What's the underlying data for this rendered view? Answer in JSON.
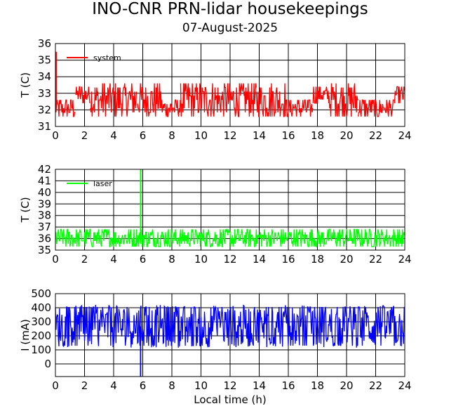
{
  "title": "INO-CNR PRN-lidar housekeepings",
  "subtitle": "07-August-2025",
  "chart_data": [
    {
      "type": "line",
      "name": "system-temperature",
      "ylabel": "T (C)",
      "xlabel": "",
      "xlim": [
        0,
        24
      ],
      "ylim": [
        31,
        36
      ],
      "x_ticks": [
        0,
        2,
        4,
        6,
        8,
        10,
        12,
        14,
        16,
        18,
        20,
        22,
        24
      ],
      "y_ticks": [
        31,
        32,
        33,
        34,
        35,
        36
      ],
      "grid": true,
      "legend_position": "top-left",
      "series": [
        {
          "name": "system",
          "color": "#ff0000",
          "spike": {
            "x": 0.05,
            "value": 35.5
          },
          "segments": [
            {
              "x": [
                0.0,
                1.4
              ],
              "low": 31.6,
              "high": 32.7
            },
            {
              "x": [
                1.4,
                2.4
              ],
              "low": 32.4,
              "high": 33.6
            },
            {
              "x": [
                2.4,
                5.6
              ],
              "low": 31.6,
              "high": 33.6
            },
            {
              "x": [
                5.6,
                7.3
              ],
              "low": 31.6,
              "high": 33.6
            },
            {
              "x": [
                7.3,
                8.6
              ],
              "low": 31.6,
              "high": 32.7
            },
            {
              "x": [
                8.6,
                13.8
              ],
              "low": 31.6,
              "high": 33.6
            },
            {
              "x": [
                13.8,
                15.8
              ],
              "low": 31.6,
              "high": 33.6
            },
            {
              "x": [
                15.8,
                17.7
              ],
              "low": 31.6,
              "high": 32.7
            },
            {
              "x": [
                17.7,
                18.8
              ],
              "low": 32.4,
              "high": 33.6
            },
            {
              "x": [
                18.8,
                20.8
              ],
              "low": 31.6,
              "high": 33.6
            },
            {
              "x": [
                20.8,
                23.3
              ],
              "low": 31.6,
              "high": 32.7
            },
            {
              "x": [
                23.3,
                24.0
              ],
              "low": 32.4,
              "high": 33.6
            }
          ]
        }
      ]
    },
    {
      "type": "line",
      "name": "laser-temperature",
      "ylabel": "T (C)",
      "xlabel": "",
      "xlim": [
        0,
        24
      ],
      "ylim": [
        35,
        42
      ],
      "x_ticks": [
        0,
        2,
        4,
        6,
        8,
        10,
        12,
        14,
        16,
        18,
        20,
        22,
        24
      ],
      "y_ticks": [
        35,
        36,
        37,
        38,
        39,
        40,
        41,
        42
      ],
      "grid": true,
      "legend_position": "top-left",
      "series": [
        {
          "name": "laser",
          "color": "#00ff00",
          "spike": {
            "x": 5.85,
            "value": 42
          },
          "segments": [
            {
              "x": [
                0.0,
                24.0
              ],
              "low": 35.3,
              "high": 37.0
            }
          ]
        }
      ]
    },
    {
      "type": "line",
      "name": "detector-current",
      "ylabel": "I (mA)",
      "xlabel": "Local time (h)",
      "xlim": [
        0,
        24
      ],
      "ylim": [
        -90,
        500
      ],
      "x_ticks": [
        0,
        2,
        4,
        6,
        8,
        10,
        12,
        14,
        16,
        18,
        20,
        22,
        24
      ],
      "y_ticks": [
        0,
        100,
        200,
        300,
        400,
        500
      ],
      "grid": true,
      "legend_position": "top-left",
      "series": [
        {
          "name": "",
          "color": "#0000ff",
          "spike": {
            "x": 5.85,
            "value": -90
          },
          "segments": [
            {
              "x": [
                0.0,
                24.0
              ],
              "low": 115,
              "high": 420
            }
          ]
        }
      ]
    }
  ]
}
